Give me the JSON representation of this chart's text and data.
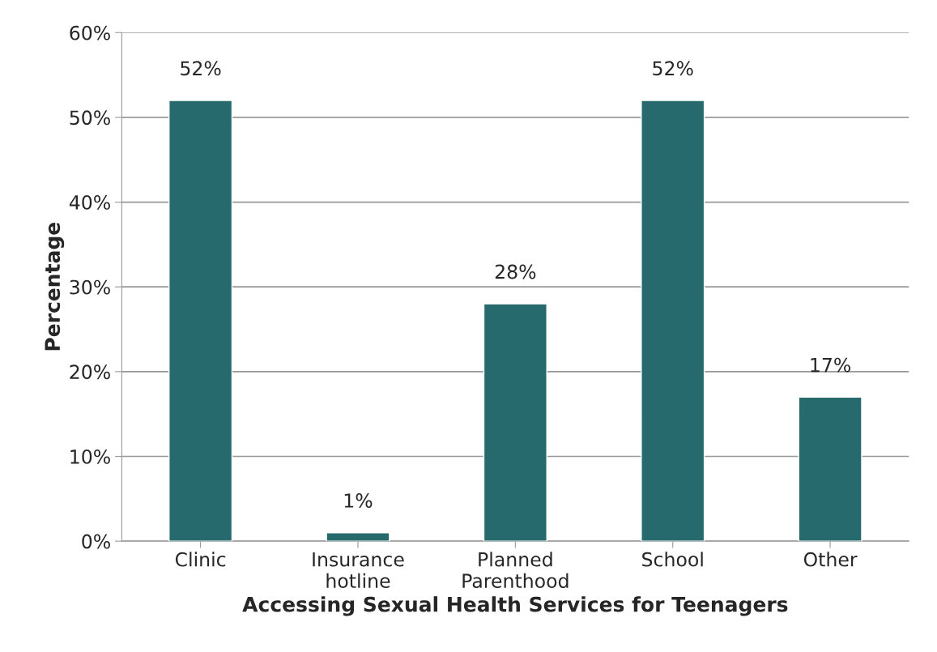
{
  "chart_data": {
    "type": "bar",
    "xlabel": "Accessing Sexual Health Services for Teenagers",
    "ylabel": "Percentage",
    "categories": [
      "Clinic",
      "Insurance\nhotline",
      "Planned\nParenthood",
      "School",
      "Other"
    ],
    "values": [
      52,
      1,
      28,
      52,
      17
    ],
    "color": "#276a6e",
    "value_labels": [
      "52%",
      "1%",
      "28%",
      "52%",
      "17%"
    ],
    "ylim": [
      0,
      60
    ],
    "yticks": [
      {
        "value": 0,
        "label": "0%"
      },
      {
        "value": 10,
        "label": "10%"
      },
      {
        "value": 20,
        "label": "20%"
      },
      {
        "value": 30,
        "label": "30%"
      },
      {
        "value": 40,
        "label": "40%"
      },
      {
        "value": 50,
        "label": "50%"
      },
      {
        "value": 60,
        "label": "60%"
      }
    ],
    "grid": "y",
    "legend": false
  }
}
